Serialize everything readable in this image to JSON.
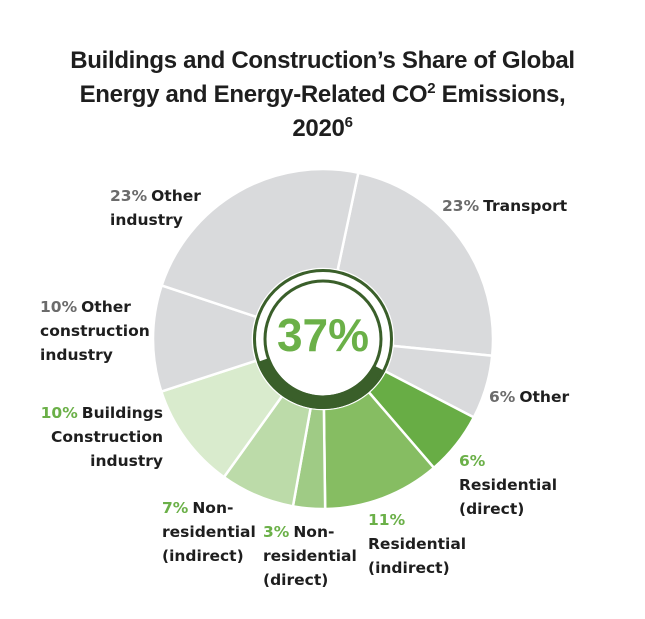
{
  "title": {
    "line1": "Buildings and Construction’s Share of Global",
    "line2_pre": "Energy and Energy-Related CO",
    "line2_sup": "2",
    "line2_post": " Emissions,",
    "line3": "2020",
    "line3_sup": "6"
  },
  "center_label": "37%",
  "colors": {
    "grey_slice": "#d9dadc",
    "dark_green_ring": "#3a5f2a",
    "pct_grey": "#6b6b6b",
    "pct_green": "#6bb048",
    "text_dark": "#1e1e1e"
  },
  "chart_data": {
    "type": "pie",
    "variant": "donut",
    "title": "Buildings and Construction’s Share of Global Energy and Energy-Related CO2 Emissions, 2020",
    "unit": "%",
    "center_value": 37,
    "center_value_label": "37%",
    "slices": [
      {
        "name": "Transport",
        "value": 23,
        "pct_label": "23%",
        "label_lines": [
          "Transport"
        ],
        "group": "other",
        "color": "#d9dadc"
      },
      {
        "name": "Other",
        "value": 6,
        "pct_label": "6%",
        "label_lines": [
          "Other"
        ],
        "group": "other",
        "color": "#d9dadc"
      },
      {
        "name": "Residential (direct)",
        "value": 6,
        "pct_label": "6%",
        "label_lines": [
          "Residential",
          "(direct)"
        ],
        "group": "buildings",
        "color": "#68ad45"
      },
      {
        "name": "Residential (indirect)",
        "value": 11,
        "pct_label": "11%",
        "label_lines": [
          "Residential",
          "(indirect)"
        ],
        "group": "buildings",
        "color": "#86bd62"
      },
      {
        "name": "Non-residential (direct)",
        "value": 3,
        "pct_label": "3%",
        "label_lines": [
          "Non-",
          "residential",
          "(direct)"
        ],
        "group": "buildings",
        "color": "#9fcb85"
      },
      {
        "name": "Non-residential (indirect)",
        "value": 7,
        "pct_label": "7%",
        "label_lines": [
          "Non-",
          "residential",
          "(indirect)"
        ],
        "group": "buildings",
        "color": "#bcdba9"
      },
      {
        "name": "Buildings Construction industry",
        "value": 10,
        "pct_label": "10%",
        "label_lines": [
          "Buildings",
          "Construction",
          "industry"
        ],
        "group": "buildings",
        "color": "#d9ebcd"
      },
      {
        "name": "Other construction industry",
        "value": 10,
        "pct_label": "10%",
        "label_lines": [
          "Other",
          "construction",
          "industry"
        ],
        "group": "other",
        "color": "#d9dadc"
      },
      {
        "name": "Other industry",
        "value": 23,
        "pct_label": "23%",
        "label_lines": [
          "Other",
          "industry"
        ],
        "group": "other",
        "color": "#d9dadc"
      }
    ]
  }
}
